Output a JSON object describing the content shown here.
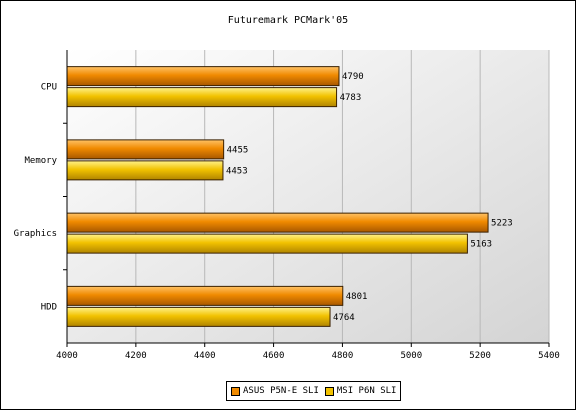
{
  "chart_data": {
    "type": "bar",
    "orientation": "horizontal",
    "title": "Futuremark PCMark'05",
    "xlabel": "",
    "ylabel": "",
    "categories": [
      "CPU",
      "Memory",
      "Graphics",
      "HDD"
    ],
    "series": [
      {
        "name": "ASUS P5N-E SLI",
        "values": [
          4790,
          4455,
          5223,
          4801
        ],
        "color": "#f08a00"
      },
      {
        "name": "MSI P6N SLI",
        "values": [
          4783,
          4453,
          5163,
          4764
        ],
        "color": "#f2c200"
      }
    ],
    "xlim": [
      4000,
      5400
    ],
    "x_ticks": [
      4000,
      4200,
      4400,
      4600,
      4800,
      5000,
      5200,
      5400
    ],
    "grid": true,
    "legend_position": "bottom-center"
  }
}
